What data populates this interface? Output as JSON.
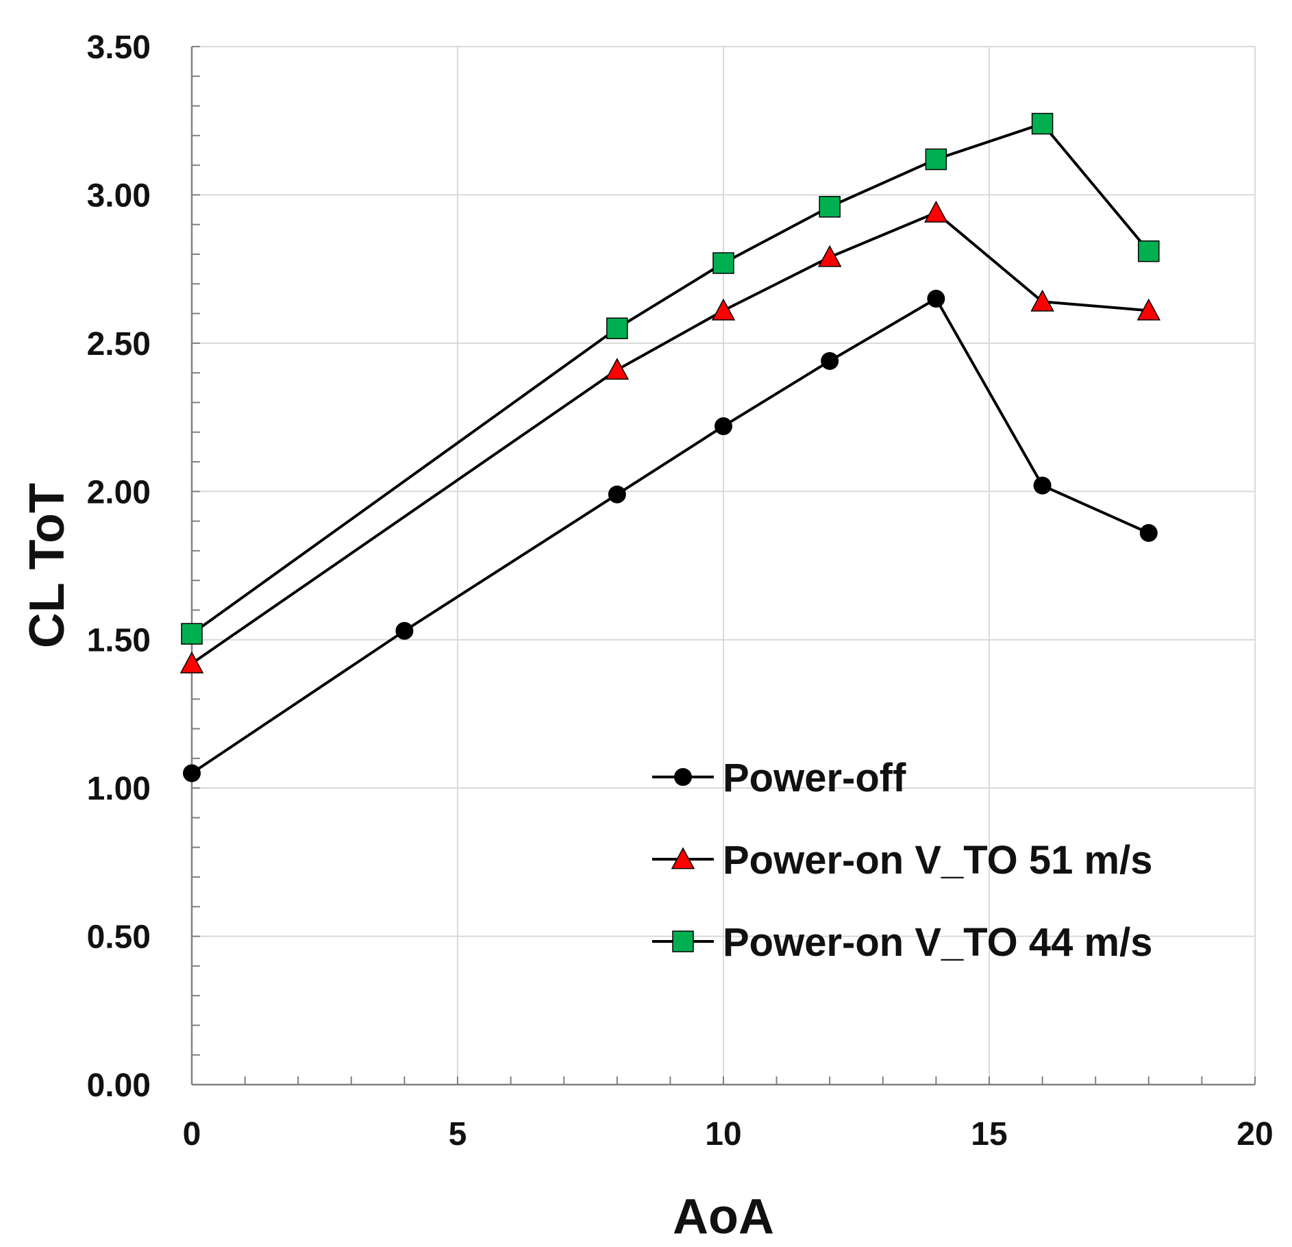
{
  "chart_data": {
    "type": "line",
    "title": "",
    "xlabel": "AoA",
    "ylabel": "CL ToT",
    "xlim": [
      0,
      20
    ],
    "ylim": [
      0,
      3.5
    ],
    "x_ticks": [
      "0",
      "5",
      "10",
      "15",
      "20"
    ],
    "y_ticks": [
      "0.00",
      "0.50",
      "1.00",
      "1.50",
      "2.00",
      "2.50",
      "3.00",
      "3.50"
    ],
    "grid": true,
    "legend_position": "lower-right",
    "series": [
      {
        "name": "Power-off",
        "marker": "circle",
        "color": "#000000",
        "x": [
          0,
          4,
          8,
          10,
          12,
          14,
          16,
          18
        ],
        "y": [
          1.05,
          1.53,
          1.99,
          2.22,
          2.44,
          2.65,
          2.02,
          1.86
        ]
      },
      {
        "name": "Power-on V_TO 51 m/s",
        "marker": "triangle",
        "color": "#ff0000",
        "x": [
          0,
          8,
          10,
          12,
          14,
          16,
          18
        ],
        "y": [
          1.42,
          2.41,
          2.61,
          2.79,
          2.94,
          2.64,
          2.61
        ]
      },
      {
        "name": "Power-on V_TO 44 m/s",
        "marker": "square",
        "color": "#00b050",
        "x": [
          0,
          8,
          10,
          12,
          14,
          16,
          18
        ],
        "y": [
          1.52,
          2.55,
          2.77,
          2.96,
          3.12,
          3.24,
          2.81
        ]
      }
    ]
  }
}
